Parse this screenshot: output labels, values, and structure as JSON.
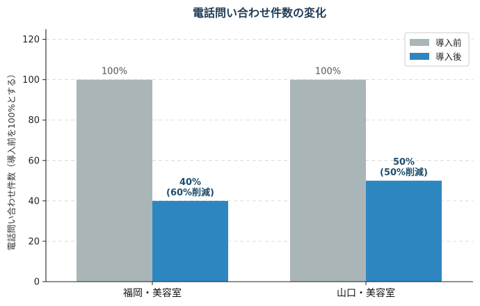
{
  "chart_data": {
    "type": "bar",
    "title": "電話問い合わせ件数の変化",
    "xlabel": "",
    "ylabel": "電話問い合わせ件数（導入前を100%とする）",
    "categories": [
      "福岡・美容室",
      "山口・美容室"
    ],
    "series": [
      {
        "name": "導入前",
        "values": [
          100,
          100
        ],
        "color": "#aab5b7",
        "labels": [
          [
            "100%"
          ],
          [
            "100%"
          ]
        ]
      },
      {
        "name": "導入後",
        "values": [
          40,
          50
        ],
        "color": "#2e86c1",
        "labels": [
          [
            "40%",
            "(60%削減)"
          ],
          [
            "50%",
            "(50%削減)"
          ]
        ]
      }
    ],
    "ylim": [
      0,
      125
    ],
    "yticks": [
      0,
      20,
      40,
      60,
      80,
      100,
      120
    ],
    "grid": true,
    "legend_position": "top-right"
  }
}
